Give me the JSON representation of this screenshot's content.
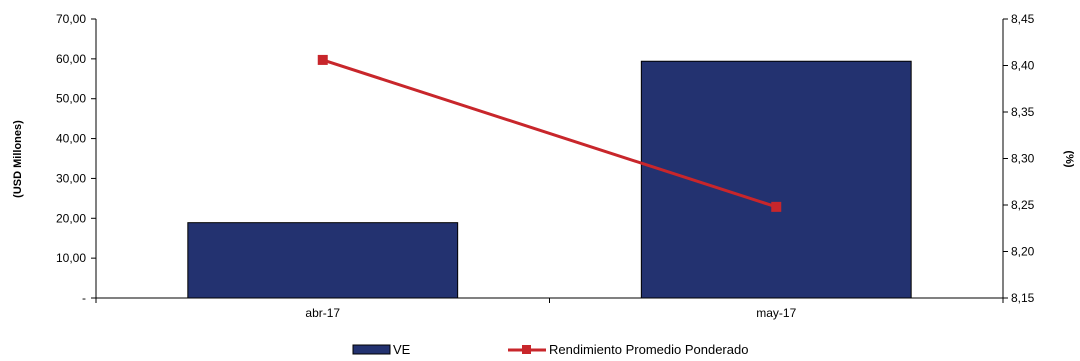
{
  "chart_data": {
    "type": "bar",
    "categories": [
      "abr-17",
      "may-17"
    ],
    "series": [
      {
        "name": "VE",
        "type": "bar",
        "axis": "left",
        "color": "#233270",
        "values": [
          18.9,
          59.4
        ]
      },
      {
        "name": "Rendimiento Promedio Ponderado",
        "type": "line",
        "axis": "right",
        "color": "#c8262b",
        "values": [
          8.406,
          8.248
        ]
      }
    ],
    "ylabel": "(USD Millones)",
    "y2label": "(%)",
    "ylim": [
      0,
      70
    ],
    "y2lim": [
      8.15,
      8.45
    ],
    "yticks": [
      "-",
      "10,00",
      "20,00",
      "30,00",
      "40,00",
      "50,00",
      "60,00",
      "70,00"
    ],
    "y2ticks": [
      "8,15",
      "8,20",
      "8,25",
      "8,30",
      "8,35",
      "8,40",
      "8,45"
    ],
    "grid": false,
    "legend": "bottom-center"
  }
}
